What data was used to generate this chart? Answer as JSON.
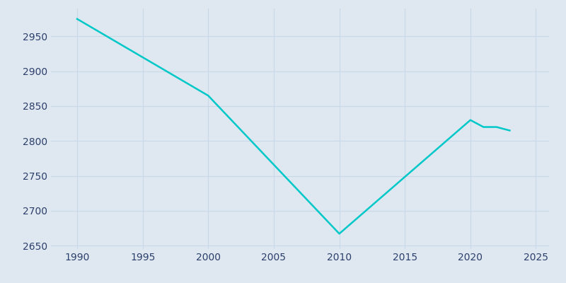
{
  "years": [
    1990,
    2000,
    2010,
    2020,
    2021,
    2022,
    2023
  ],
  "population": [
    2975,
    2865,
    2667,
    2830,
    2820,
    2820,
    2815
  ],
  "line_color": "#00c8c8",
  "bg_color": "#dfe8f0",
  "grid_color": "#c8d8e8",
  "axis_label_color": "#2c3e6b",
  "xlim": [
    1988,
    2026
  ],
  "ylim": [
    2645,
    2990
  ],
  "xticks": [
    1990,
    1995,
    2000,
    2005,
    2010,
    2015,
    2020,
    2025
  ],
  "yticks": [
    2650,
    2700,
    2750,
    2800,
    2850,
    2900,
    2950
  ],
  "line_width": 1.8,
  "figsize": [
    8.0,
    4.0
  ],
  "dpi": 100
}
